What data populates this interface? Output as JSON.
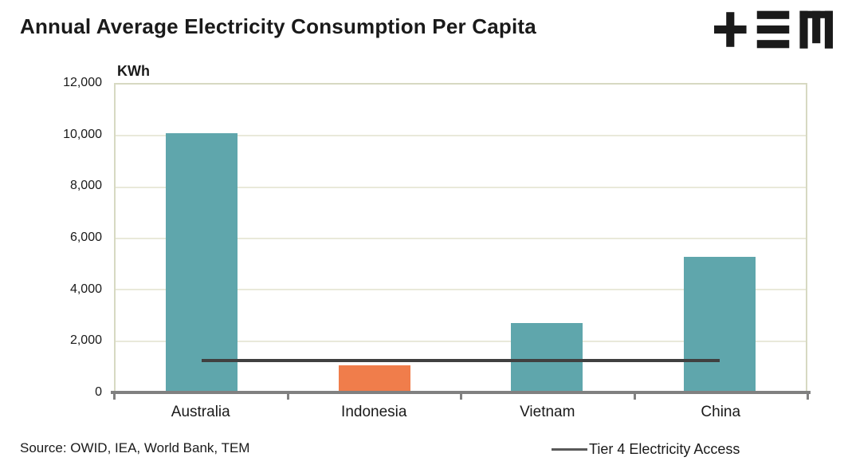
{
  "title": "Annual Average Electricity Consumption Per Capita",
  "logo_name": "TEM logo (plus, triple-bar, M glyphs)",
  "source_note": "Source: OWID, IEA, World Bank, TEM",
  "chart_data": {
    "type": "bar",
    "title": "Annual Average Electricity Consumption Per Capita",
    "categories": [
      "Australia",
      "Indonesia",
      "Vietnam",
      "China"
    ],
    "values": [
      10100,
      1050,
      2700,
      5300
    ],
    "bar_colors": [
      "#5FA6AC",
      "#F07D4B",
      "#5FA6AC",
      "#5FA6AC"
    ],
    "ylabel": "KWh",
    "xlabel": "",
    "ylim": [
      0,
      12000
    ],
    "ytick_step": 2000,
    "ytick_labels": [
      "0",
      "2,000",
      "4,000",
      "6,000",
      "8,000",
      "10,000",
      "12,000"
    ],
    "grid": true,
    "legend_position": "bottom-right",
    "reference_line": {
      "label": "Tier 4 Electricity Access",
      "value": 1250,
      "color": "#404040",
      "spans": "first to last category center"
    }
  },
  "colors": {
    "teal_bar": "#5FA6AC",
    "orange_bar": "#F07D4B",
    "axis_gray": "#808080",
    "gridline": "#E9E9DA",
    "plot_border": "#D7D9C2",
    "reference_line": "#404040",
    "legend_swatch": "#595959",
    "text": "#1A1A1A",
    "logo": "#1A1A1A"
  }
}
